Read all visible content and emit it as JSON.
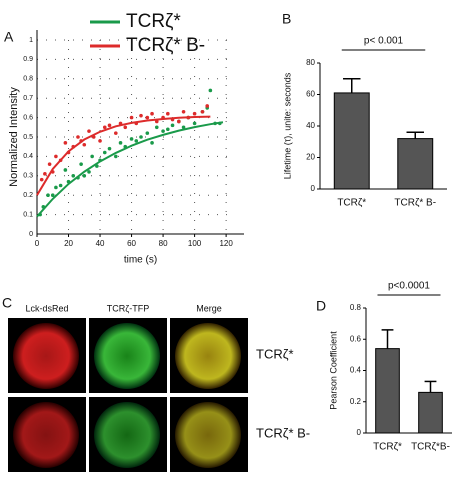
{
  "panel_labels": [
    "A",
    "B",
    "C",
    "D"
  ],
  "chart_data": [
    {
      "type": "scatter",
      "xlabel": "time (s)",
      "ylabel": "Normalized Intensity",
      "xlim": [
        0,
        125
      ],
      "ylim": [
        0,
        1
      ],
      "xticks": [
        0,
        20,
        40,
        60,
        80,
        100,
        120
      ],
      "yticks": [
        0,
        0.1,
        0.2,
        0.3,
        0.4,
        0.5,
        0.6,
        0.7,
        0.8,
        0.9,
        1
      ],
      "grid": true,
      "series": [
        {
          "name": "TCRζ*",
          "color": "#1a9a4a",
          "x": [
            2,
            4,
            7,
            10,
            12,
            15,
            18,
            20,
            23,
            26,
            28,
            30,
            33,
            35,
            38,
            40,
            43,
            46,
            50,
            53,
            56,
            60,
            63,
            66,
            70,
            73,
            76,
            80,
            83,
            86,
            90,
            93,
            96,
            100,
            105,
            108,
            110,
            113,
            116
          ],
          "values": [
            0.1,
            0.14,
            0.2,
            0.2,
            0.24,
            0.25,
            0.33,
            0.27,
            0.3,
            0.29,
            0.36,
            0.3,
            0.32,
            0.4,
            0.35,
            0.38,
            0.42,
            0.44,
            0.4,
            0.47,
            0.45,
            0.49,
            0.48,
            0.5,
            0.52,
            0.47,
            0.55,
            0.53,
            0.54,
            0.56,
            0.58,
            0.55,
            0.6,
            0.57,
            0.63,
            0.65,
            0.74,
            0.57,
            0.57
          ],
          "fit_x": [
            0,
            10,
            20,
            30,
            40,
            50,
            60,
            70,
            80,
            90,
            100,
            110,
            118
          ],
          "fit": [
            0.09,
            0.181,
            0.258,
            0.321,
            0.374,
            0.418,
            0.455,
            0.486,
            0.511,
            0.533,
            0.551,
            0.566,
            0.576
          ]
        },
        {
          "name": "TCRζ* B-",
          "color": "#dd2b2b",
          "x": [
            3,
            5,
            8,
            10,
            12,
            15,
            18,
            20,
            23,
            26,
            28,
            30,
            33,
            36,
            40,
            43,
            46,
            50,
            53,
            56,
            60,
            63,
            66,
            70,
            73,
            76,
            80,
            83,
            86,
            90,
            93,
            96,
            100,
            105,
            108
          ],
          "values": [
            0.28,
            0.31,
            0.36,
            0.32,
            0.4,
            0.38,
            0.47,
            0.42,
            0.45,
            0.5,
            0.48,
            0.46,
            0.53,
            0.5,
            0.48,
            0.55,
            0.56,
            0.52,
            0.57,
            0.55,
            0.6,
            0.57,
            0.61,
            0.6,
            0.62,
            0.58,
            0.6,
            0.62,
            0.59,
            0.58,
            0.63,
            0.6,
            0.62,
            0.63,
            0.66
          ],
          "fit_x": [
            0,
            10,
            20,
            30,
            40,
            50,
            60,
            70,
            80,
            90,
            100,
            110
          ],
          "fit": [
            0.2,
            0.335,
            0.426,
            0.487,
            0.527,
            0.555,
            0.573,
            0.585,
            0.593,
            0.599,
            0.603,
            0.605
          ]
        }
      ]
    },
    {
      "type": "bar",
      "ylabel": "Lifetime (τ), unite: seconds",
      "annotation": "p< 0.001",
      "categories": [
        "TCRζ*",
        "TCRζ* B-"
      ],
      "values": [
        61,
        32
      ],
      "errors": [
        9,
        4
      ],
      "color": "#555555",
      "ylim": [
        0,
        80
      ],
      "yticks": [
        0,
        20,
        40,
        60,
        80
      ]
    },
    {
      "type": "bar",
      "ylabel": "Pearson Coefficient",
      "annotation": "p<0.0001",
      "categories": [
        "TCRζ*",
        "TCRζ*B-"
      ],
      "values": [
        0.54,
        0.26
      ],
      "errors": [
        0.12,
        0.07
      ],
      "color": "#555555",
      "ylim": [
        0,
        0.8
      ],
      "yticks": [
        0,
        0.2,
        0.4,
        0.6,
        0.8
      ]
    }
  ],
  "images": {
    "columns": [
      "Lck-dsRed",
      "TCRζ-TFP",
      "Merge"
    ],
    "rows": [
      "TCRζ*",
      "TCRζ* B-"
    ]
  }
}
